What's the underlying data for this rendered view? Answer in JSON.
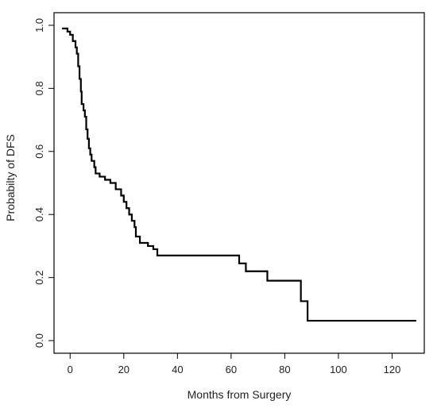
{
  "chart_data": {
    "type": "line",
    "xlabel": "Months from Surgery",
    "ylabel": "Probabilty of DFS",
    "xlim": [
      -6,
      132
    ],
    "ylim": [
      -0.04,
      1.04
    ],
    "xticks": [
      0,
      20,
      40,
      60,
      80,
      100,
      120
    ],
    "yticks": [
      0.0,
      0.2,
      0.4,
      0.6,
      0.8,
      1.0
    ],
    "xtick_labels": [
      "0",
      "20",
      "40",
      "60",
      "80",
      "100",
      "120"
    ],
    "ytick_labels": [
      "0.0",
      "0.2",
      "0.4",
      "0.6",
      "0.8",
      "1.0"
    ],
    "line_color": "#000000",
    "grid": false,
    "step": true,
    "series": [
      {
        "points": [
          [
            -3,
            0.99
          ],
          [
            -1,
            0.98
          ],
          [
            0,
            0.97
          ],
          [
            1,
            0.95
          ],
          [
            2,
            0.93
          ],
          [
            2.5,
            0.91
          ],
          [
            3,
            0.87
          ],
          [
            3.5,
            0.83
          ],
          [
            4,
            0.79
          ],
          [
            4.3,
            0.75
          ],
          [
            5,
            0.73
          ],
          [
            5.5,
            0.71
          ],
          [
            6,
            0.67
          ],
          [
            6.5,
            0.64
          ],
          [
            7,
            0.61
          ],
          [
            7.5,
            0.59
          ],
          [
            8,
            0.57
          ],
          [
            9,
            0.55
          ],
          [
            9.5,
            0.53
          ],
          [
            11,
            0.52
          ],
          [
            13,
            0.51
          ],
          [
            15,
            0.5
          ],
          [
            17,
            0.48
          ],
          [
            19,
            0.46
          ],
          [
            20,
            0.44
          ],
          [
            21,
            0.42
          ],
          [
            22,
            0.4
          ],
          [
            23,
            0.38
          ],
          [
            24,
            0.36
          ],
          [
            24.5,
            0.33
          ],
          [
            26,
            0.31
          ],
          [
            29,
            0.3
          ],
          [
            31,
            0.29
          ],
          [
            32.5,
            0.27
          ],
          [
            63,
            0.245
          ],
          [
            65.5,
            0.22
          ],
          [
            73.5,
            0.19
          ],
          [
            86,
            0.125
          ],
          [
            88.5,
            0.063
          ],
          [
            129,
            0.063
          ]
        ]
      }
    ]
  }
}
